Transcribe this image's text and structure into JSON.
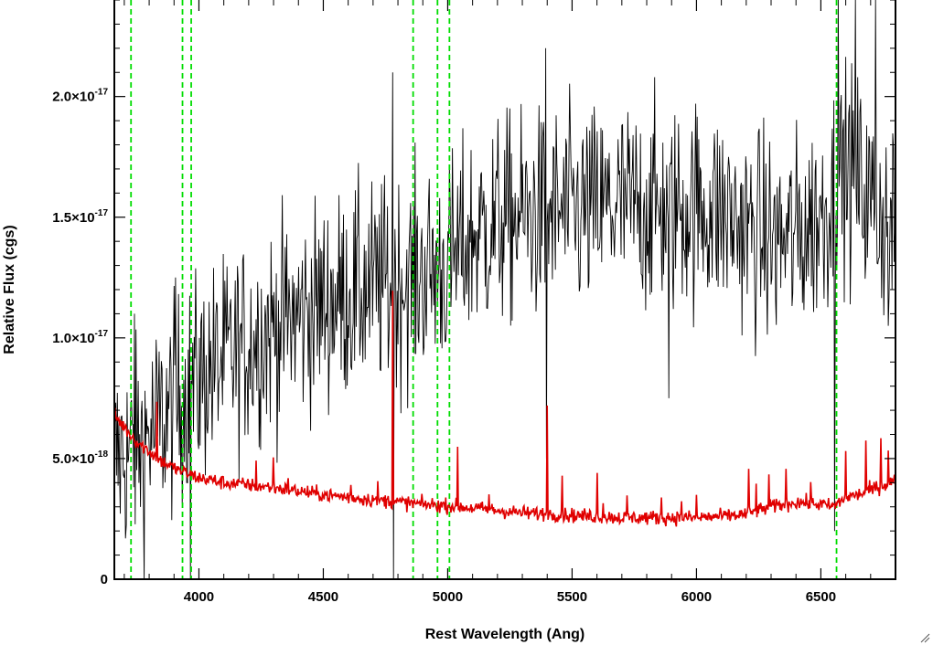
{
  "chart_data": {
    "type": "line",
    "title": "",
    "xlabel": "Rest Wavelength (Ang)",
    "ylabel": "Relative Flux (cgs)",
    "xlim": [
      3660,
      6800
    ],
    "ylim": [
      0,
      2.4e-17
    ],
    "x_ticks": [
      {
        "value": 4000,
        "label": "4000"
      },
      {
        "value": 4500,
        "label": "4500"
      },
      {
        "value": 5000,
        "label": "5000"
      },
      {
        "value": 5500,
        "label": "5500"
      },
      {
        "value": 6000,
        "label": "6000"
      },
      {
        "value": 6500,
        "label": "6500"
      }
    ],
    "y_ticks": [
      {
        "value": 0,
        "mantissa": "0",
        "exponent": ""
      },
      {
        "value": 5e-18,
        "mantissa": "5.0×10",
        "exponent": "-18"
      },
      {
        "value": 1e-17,
        "mantissa": "1.0×10",
        "exponent": "-17"
      },
      {
        "value": 1.5e-17,
        "mantissa": "1.5×10",
        "exponent": "-17"
      },
      {
        "value": 2e-17,
        "mantissa": "2.0×10",
        "exponent": "-17"
      }
    ],
    "grid": false,
    "series": [
      {
        "color": "#000000",
        "x": [
          3660,
          3700,
          3750,
          3800,
          3850,
          3900,
          3950,
          4000,
          4050,
          4100,
          4150,
          4200,
          4300,
          4400,
          4500,
          4600,
          4700,
          4750,
          4800,
          4850,
          4900,
          4950,
          5000,
          5050,
          5100,
          5200,
          5300,
          5400,
          5500,
          5600,
          5700,
          5800,
          5900,
          6000,
          6100,
          6200,
          6300,
          6400,
          6500,
          6550,
          6600,
          6650,
          6700,
          6750,
          6800
        ],
        "y": [
          5e-18,
          5.2e-18,
          5.4e-18,
          6e-18,
          6.6e-18,
          7.2e-18,
          7.8e-18,
          8.3e-18,
          8.7e-18,
          9e-18,
          9.4e-18,
          9.8e-18,
          1.04e-17,
          1.09e-17,
          1.14e-17,
          1.18e-17,
          1.21e-17,
          1.22e-17,
          1.23e-17,
          1.24e-17,
          1.27e-17,
          1.28e-17,
          1.3e-17,
          1.36e-17,
          1.42e-17,
          1.48e-17,
          1.5e-17,
          1.51e-17,
          1.52e-17,
          1.53e-17,
          1.54e-17,
          1.54e-17,
          1.53e-17,
          1.55e-17,
          1.52e-17,
          1.45e-17,
          1.4e-17,
          1.42e-17,
          1.5e-17,
          1.6e-17,
          1.7e-17,
          1.65e-17,
          1.55e-17,
          1.5e-17,
          1.45e-17
        ],
        "noise_sigma": 2.2e-18,
        "spikes": [
          {
            "x": 3740,
            "y": 1.1e-17
          },
          {
            "x": 3780,
            "y": 0
          },
          {
            "x": 3905,
            "y": 1.25e-17
          },
          {
            "x": 3965,
            "y": 0
          },
          {
            "x": 4780,
            "y": 2.1e-17
          },
          {
            "x": 4782,
            "y": 0
          },
          {
            "x": 5395,
            "y": 2.2e-17
          },
          {
            "x": 5398,
            "y": 5e-18
          },
          {
            "x": 5890,
            "y": 7.5e-18
          },
          {
            "x": 6555,
            "y": 2e-18
          },
          {
            "x": 6570,
            "y": 2.4e-17
          },
          {
            "x": 6640,
            "y": 2.4e-17
          },
          {
            "x": 6720,
            "y": 2.4e-17
          },
          {
            "x": 6770,
            "y": 1.05e-17
          }
        ]
      },
      {
        "color": "#e00000",
        "x": [
          3660,
          3700,
          3750,
          3800,
          3850,
          3900,
          3950,
          4000,
          4050,
          4100,
          4150,
          4200,
          4300,
          4400,
          4500,
          4600,
          4700,
          4800,
          4900,
          5000,
          5100,
          5200,
          5300,
          5400,
          5500,
          5600,
          5700,
          5800,
          5900,
          6000,
          6100,
          6200,
          6300,
          6400,
          6500,
          6550,
          6600,
          6650,
          6700,
          6750,
          6800
        ],
        "y": [
          6.8e-18,
          6.3e-18,
          5.7e-18,
          5.3e-18,
          4.9e-18,
          4.6e-18,
          4.4e-18,
          4.2e-18,
          4.1e-18,
          4e-18,
          3.95e-18,
          3.9e-18,
          3.8e-18,
          3.65e-18,
          3.5e-18,
          3.4e-18,
          3.3e-18,
          3.2e-18,
          3.1e-18,
          3.05e-18,
          2.95e-18,
          2.85e-18,
          2.75e-18,
          2.7e-18,
          2.65e-18,
          2.6e-18,
          2.55e-18,
          2.55e-18,
          2.55e-18,
          2.55e-18,
          2.6e-18,
          2.7e-18,
          3e-18,
          3.2e-18,
          3.1e-18,
          3e-18,
          3.4e-18,
          3.5e-18,
          3.7e-18,
          3.9e-18,
          4.1e-18
        ],
        "noise_sigma": 1.5e-19,
        "lines": [
          {
            "x": 3830,
            "h": 2.2e-18
          },
          {
            "x": 4230,
            "h": 8e-19
          },
          {
            "x": 4300,
            "h": 1.3e-18
          },
          {
            "x": 4360,
            "h": 6e-19
          },
          {
            "x": 4610,
            "h": 5e-19
          },
          {
            "x": 4720,
            "h": 5e-19
          },
          {
            "x": 4780,
            "h": 8.8e-18
          },
          {
            "x": 5040,
            "h": 2.3e-18
          },
          {
            "x": 5165,
            "h": 6e-19
          },
          {
            "x": 5400,
            "h": 4.8e-18
          },
          {
            "x": 5460,
            "h": 1.8e-18
          },
          {
            "x": 5600,
            "h": 1.8e-18
          },
          {
            "x": 5625,
            "h": 8e-19
          },
          {
            "x": 5720,
            "h": 8e-19
          },
          {
            "x": 5860,
            "h": 9e-19
          },
          {
            "x": 5940,
            "h": 8e-19
          },
          {
            "x": 6000,
            "h": 8e-19
          },
          {
            "x": 6210,
            "h": 1.9e-18
          },
          {
            "x": 6240,
            "h": 1.3e-18
          },
          {
            "x": 6290,
            "h": 1.3e-18
          },
          {
            "x": 6360,
            "h": 1.3e-18
          },
          {
            "x": 6460,
            "h": 9e-19
          },
          {
            "x": 6600,
            "h": 1.8e-18
          },
          {
            "x": 6680,
            "h": 2e-18
          },
          {
            "x": 6740,
            "h": 2e-18
          },
          {
            "x": 6770,
            "h": 1.4e-18
          }
        ]
      }
    ],
    "reference_lines": {
      "color": "#00dd00",
      "style": "dashed",
      "x": [
        3727,
        3934,
        3969,
        4861,
        4959,
        5007,
        6563
      ]
    }
  }
}
